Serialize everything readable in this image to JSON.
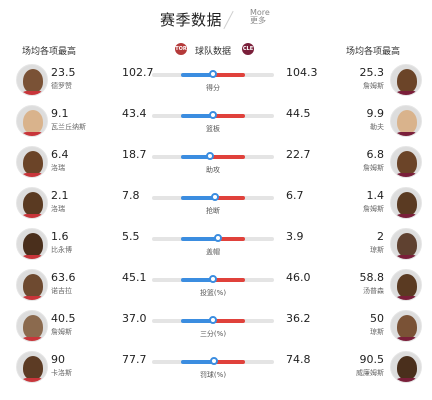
{
  "header": {
    "title": "赛季数据",
    "more_en": "More",
    "more_cn": "更多"
  },
  "columns": {
    "left": "场均各项最高",
    "middle": "球队数据",
    "right": "场均各项最高",
    "team_left_abbr": "TOR",
    "team_right_abbr": "CLE"
  },
  "colors": {
    "left_team": "#3b8de0",
    "right_team": "#e0413b",
    "track": "#e4e4e4"
  },
  "rows": [
    {
      "stat": "得分",
      "left_player_value": "23.5",
      "left_player_name": "德罗赞",
      "left_team_value": "102.7",
      "right_team_value": "104.3",
      "right_player_value": "25.3",
      "right_player_name": "詹姆斯",
      "left_share": 0.496
    },
    {
      "stat": "篮板",
      "left_player_value": "9.1",
      "left_player_name": "瓦兰丘纳斯",
      "left_team_value": "43.4",
      "right_team_value": "44.5",
      "right_player_value": "9.9",
      "right_player_name": "勒夫",
      "left_share": 0.494
    },
    {
      "stat": "助攻",
      "left_player_value": "6.4",
      "left_player_name": "洛瑞",
      "left_team_value": "18.7",
      "right_team_value": "22.7",
      "right_player_value": "6.8",
      "right_player_name": "詹姆斯",
      "left_share": 0.452
    },
    {
      "stat": "抢断",
      "left_player_value": "2.1",
      "left_player_name": "洛瑞",
      "left_team_value": "7.8",
      "right_team_value": "6.7",
      "right_player_value": "1.4",
      "right_player_name": "詹姆斯",
      "left_share": 0.538
    },
    {
      "stat": "盖帽",
      "left_player_value": "1.6",
      "left_player_name": "比永博",
      "left_team_value": "5.5",
      "right_team_value": "3.9",
      "right_player_value": "2",
      "right_player_name": "琼斯",
      "left_share": 0.585
    },
    {
      "stat": "投篮(%)",
      "left_player_value": "63.6",
      "left_player_name": "诺吉拉",
      "left_team_value": "45.1",
      "right_team_value": "46.0",
      "right_player_value": "58.8",
      "right_player_name": "汤普森",
      "left_share": 0.495
    },
    {
      "stat": "三分(%)",
      "left_player_value": "40.5",
      "left_player_name": "詹姆斯",
      "left_team_value": "37.0",
      "right_team_value": "36.2",
      "right_player_value": "50",
      "right_player_name": "琼斯",
      "left_share": 0.505
    },
    {
      "stat": "罚球(%)",
      "left_player_value": "90",
      "left_player_name": "卡洛斯",
      "left_team_value": "77.7",
      "right_team_value": "74.8",
      "right_player_value": "90.5",
      "right_player_name": "威廉姆斯",
      "left_share": 0.51
    }
  ]
}
